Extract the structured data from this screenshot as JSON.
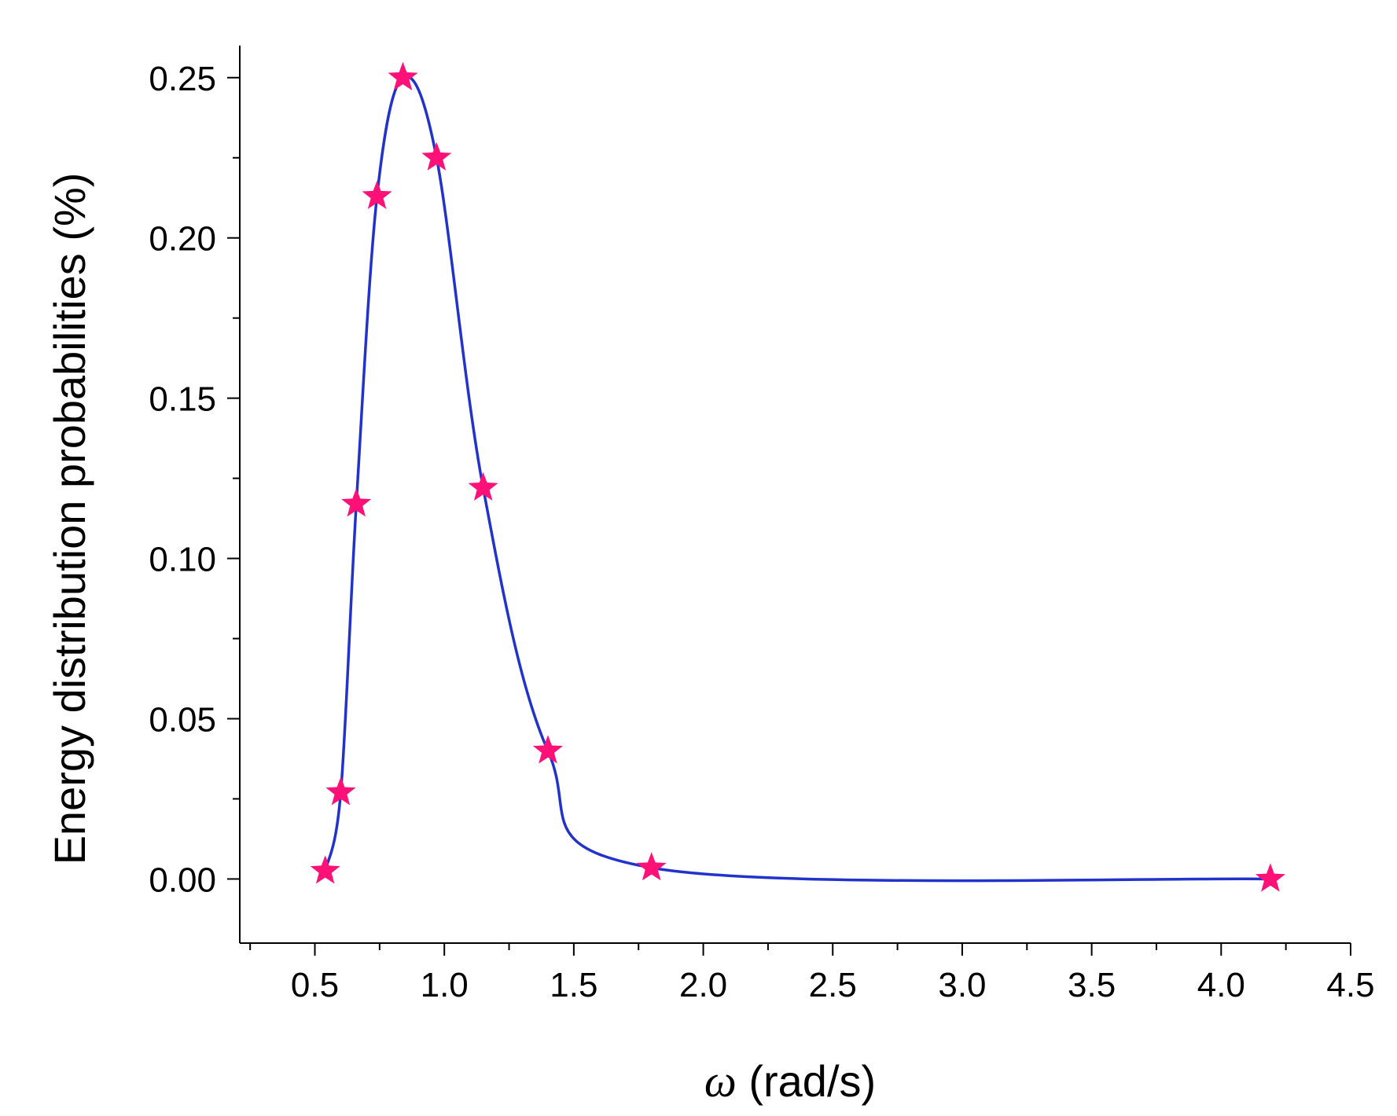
{
  "chart_data": {
    "type": "line",
    "title": "",
    "xlabel": {
      "symbol": "ω",
      "text": " (rad/s)"
    },
    "ylabel": "Energy distribution probabilities (%)",
    "xlim": [
      0.21,
      4.5
    ],
    "ylim": [
      -0.02,
      0.26
    ],
    "x_ticks": [
      "0.5",
      "1.0",
      "1.5",
      "2.0",
      "2.5",
      "3.0",
      "3.5",
      "4.0",
      "4.5"
    ],
    "y_ticks": [
      "0.00",
      "0.05",
      "0.10",
      "0.15",
      "0.20",
      "0.25"
    ],
    "grid": false,
    "legend": "none",
    "colors": {
      "line": "#2233cc",
      "marker": "#ff1177",
      "axis": "#000000"
    },
    "marker": "star",
    "series": [
      {
        "x": [
          0.54,
          0.6,
          0.66,
          0.74,
          0.84,
          0.97,
          1.15,
          1.4,
          1.8,
          4.19
        ],
        "y": [
          0.0025,
          0.027,
          0.117,
          0.213,
          0.25,
          0.225,
          0.122,
          0.04,
          0.0035,
          0.0
        ]
      }
    ]
  }
}
